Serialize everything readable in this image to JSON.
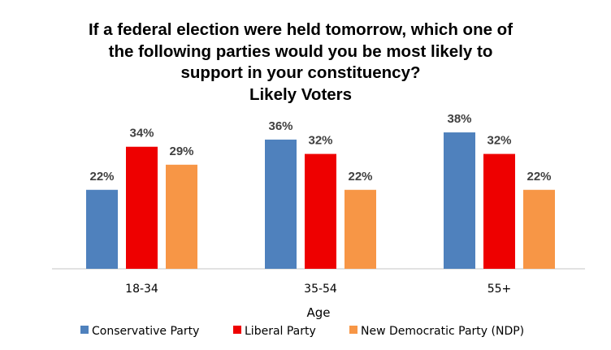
{
  "chart_data": {
    "type": "bar",
    "title": [
      "If a federal election were held tomorrow, which one of",
      "the following parties would you be most likely to",
      "support in your constituency?",
      "Likely Voters"
    ],
    "xlabel": "Age",
    "ylabel": "",
    "categories": [
      "18-34",
      "35-54",
      "55+"
    ],
    "series": [
      {
        "name": "Conservative Party",
        "color": "#4F81BD",
        "values": [
          22,
          36,
          38
        ]
      },
      {
        "name": "Liberal Party",
        "color": "#EE0000",
        "values": [
          34,
          32,
          32
        ]
      },
      {
        "name": "New Democratic Party (NDP)",
        "color": "#F79646",
        "values": [
          29,
          22,
          22
        ]
      }
    ],
    "value_suffix": "%",
    "ylim": [
      0,
      40
    ],
    "grid": false,
    "legend": "bottom"
  }
}
